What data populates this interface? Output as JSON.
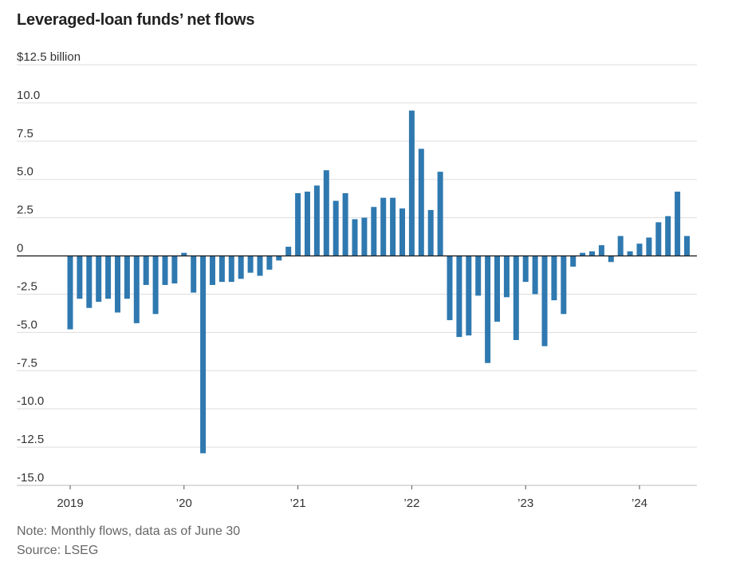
{
  "chart_data": {
    "type": "bar",
    "title": "Leveraged-loan funds’ net flows",
    "note": "Note: Monthly flows, data as of June 30",
    "source": "Source: LSEG",
    "ylabel_unit": "$12.5 billion",
    "ylim": [
      -15,
      12.5
    ],
    "yticks": [
      12.5,
      10,
      7.5,
      5,
      2.5,
      0,
      -2.5,
      -5,
      -7.5,
      -10,
      -12.5,
      -15
    ],
    "ytick_labels": [
      "$12.5 billion",
      "10.0",
      "7.5",
      "5.0",
      "2.5",
      "0",
      "-2.5",
      "-5.0",
      "-7.5",
      "-10.0",
      "-12.5",
      "-15.0"
    ],
    "xticks": [
      {
        "label": "2019",
        "index": 0
      },
      {
        "label": "’20",
        "index": 12
      },
      {
        "label": "’21",
        "index": 24
      },
      {
        "label": "’22",
        "index": 36
      },
      {
        "label": "’23",
        "index": 48
      },
      {
        "label": "’24",
        "index": 60
      }
    ],
    "grid": true,
    "bar_color": "#2f79b0",
    "start": "2019-01",
    "end": "2024-06",
    "values": [
      -4.8,
      -2.8,
      -3.4,
      -3.0,
      -2.8,
      -3.7,
      -2.8,
      -4.4,
      -1.9,
      -3.8,
      -1.9,
      -1.8,
      0.2,
      -2.4,
      -12.9,
      -1.9,
      -1.7,
      -1.7,
      -1.5,
      -1.1,
      -1.3,
      -0.9,
      -0.3,
      0.6,
      4.1,
      4.2,
      4.6,
      5.6,
      3.6,
      4.1,
      2.4,
      2.5,
      3.2,
      3.8,
      3.8,
      3.1,
      9.5,
      7.0,
      3.0,
      5.5,
      -4.2,
      -5.3,
      -5.2,
      -2.6,
      -7.0,
      -4.3,
      -2.7,
      -5.5,
      -1.7,
      -2.5,
      -5.9,
      -2.9,
      -3.8,
      -0.7,
      0.2,
      0.3,
      0.7,
      -0.4,
      1.3,
      0.3,
      0.8,
      1.2,
      2.2,
      2.6,
      4.2,
      1.3
    ]
  }
}
